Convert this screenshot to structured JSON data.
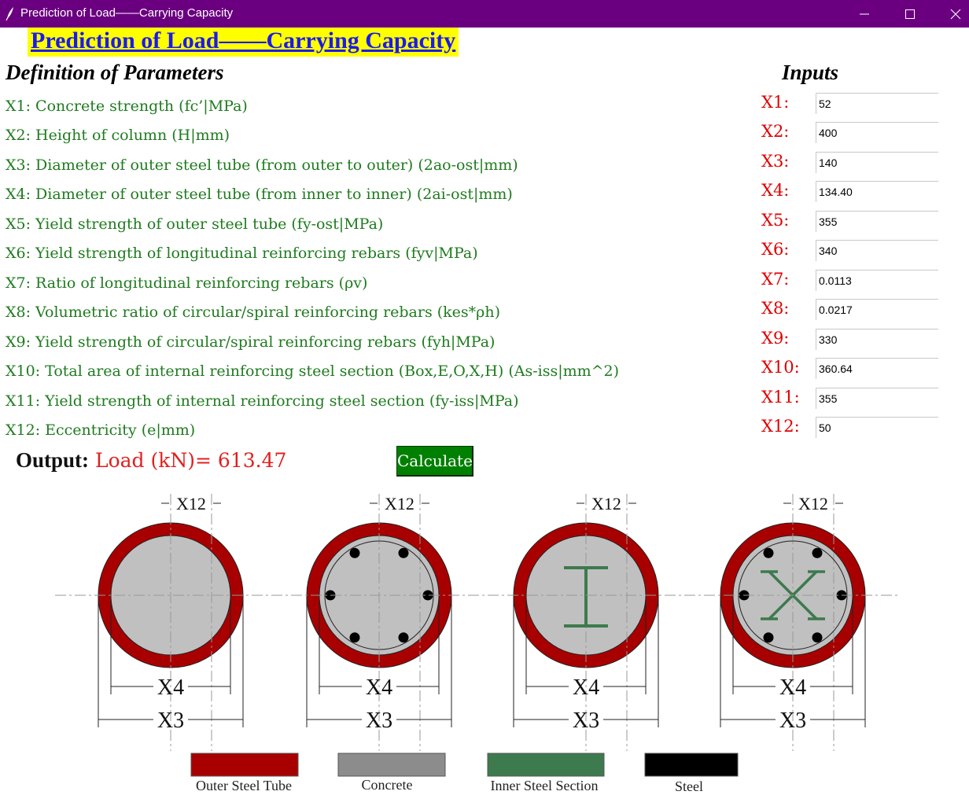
{
  "window": {
    "title": "Prediction of Load——Carrying Capacity",
    "controls": [
      "minimize-icon",
      "maximize-icon",
      "close-icon"
    ],
    "title_bar_color": "#6a0080"
  },
  "heading": "Prediction of Load——Carrying Capacity",
  "definitions": {
    "title": "Definition of Parameters",
    "items": [
      "X1: Concrete strength (fc’|MPa)",
      "X2: Height of column (H|mm)",
      "X3: Diameter of outer steel tube (from outer to outer) (2ao-ost|mm)",
      "X4: Diameter of outer steel tube (from inner to inner) (2ai-ost|mm)",
      "X5: Yield strength of outer steel tube (fy-ost|MPa)",
      "X6: Yield strength of longitudinal reinforcing rebars (fyv|MPa)",
      "X7: Ratio of longitudinal reinforcing rebars (ρv)",
      "X8: Volumetric ratio of circular/spiral reinforcing rebars (kes*ρh)",
      "X9: Yield strength of circular/spiral reinforcing rebars (fyh|MPa)",
      "X10: Total area of internal reinforcing steel section (Box,E,O,X,H) (As-iss|mm^2)",
      "X11: Yield strength of internal reinforcing steel section (fy-iss|MPa)",
      "X12: Eccentricity (e|mm)"
    ]
  },
  "inputs": {
    "title": "Inputs",
    "fields": [
      {
        "label": "X1:",
        "value": "52"
      },
      {
        "label": "X2:",
        "value": "400"
      },
      {
        "label": "X3:",
        "value": "140"
      },
      {
        "label": "X4:",
        "value": "134.40"
      },
      {
        "label": "X5:",
        "value": "355"
      },
      {
        "label": "X6:",
        "value": "340"
      },
      {
        "label": "X7:",
        "value": "0.0113"
      },
      {
        "label": "X8:",
        "value": "0.0217"
      },
      {
        "label": "X9:",
        "value": "330"
      },
      {
        "label": "X10:",
        "value": "360.64"
      },
      {
        "label": "X11:",
        "value": "355"
      },
      {
        "label": "X12:",
        "value": "50"
      }
    ]
  },
  "output": {
    "label": "Output:",
    "value": "Load (kN)= 613.47"
  },
  "calculate_button": "Calculate",
  "diagram": {
    "dimension_labels": {
      "eccentricity": "X12",
      "inner_diameter": "X4",
      "outer_diameter": "X3"
    },
    "sections": [
      "plain-concrete",
      "rebar-reinforced",
      "i-section",
      "cross-section-with-rebars"
    ],
    "legend": [
      {
        "label": "Outer Steel Tube",
        "color": "#a80000"
      },
      {
        "label": "Concrete",
        "color": "#8c8c8c"
      },
      {
        "label": "Inner Steel Section",
        "color": "#3d7a4e"
      },
      {
        "label": "Steel",
        "color": "#000000"
      }
    ]
  }
}
